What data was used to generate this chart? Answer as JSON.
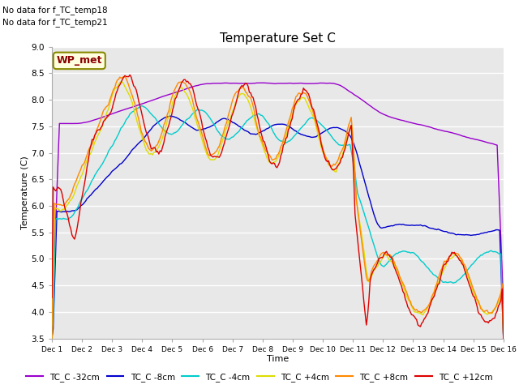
{
  "title": "Temperature Set C",
  "xlabel": "Time",
  "ylabel": "Temperature (C)",
  "ylim": [
    3.5,
    9.0
  ],
  "yticks": [
    3.5,
    4.0,
    4.5,
    5.0,
    5.5,
    6.0,
    6.5,
    7.0,
    7.5,
    8.0,
    8.5,
    9.0
  ],
  "xtick_labels": [
    "Dec 1",
    "Dec 2",
    "Dec 3",
    "Dec 4",
    "Dec 5",
    "Dec 6",
    "Dec 7",
    "Dec 8",
    "Dec 9",
    "Dec 10",
    "Dec 11",
    "Dec 12",
    "Dec 13",
    "Dec 14",
    "Dec 15",
    "Dec 16"
  ],
  "annotations": [
    "No data for f_TC_temp18",
    "No data for f_TC_temp21"
  ],
  "legend_label": "WP_met",
  "line_colors": {
    "TC_C -32cm": "#9900cc",
    "TC_C -8cm": "#0000cc",
    "TC_C -4cm": "#00cccc",
    "TC_C +4cm": "#dddd00",
    "TC_C +8cm": "#ff8800",
    "TC_C +12cm": "#dd0000"
  },
  "bg_color": "#e8e8e8",
  "grid_color": "#ffffff",
  "n_days": 15,
  "n_points": 360
}
